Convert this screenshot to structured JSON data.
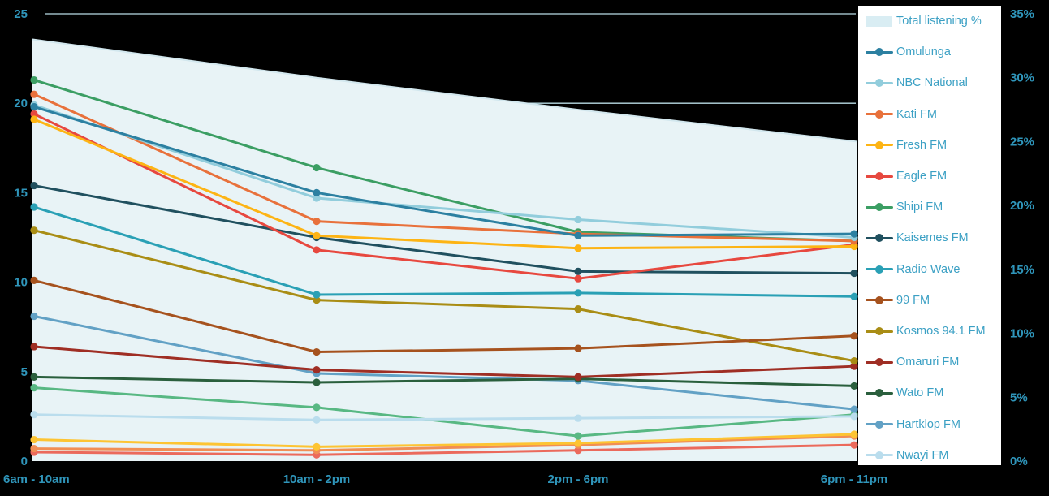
{
  "chart_data": {
    "type": "line",
    "title": "",
    "x_categories": [
      "6am - 10am",
      "10am - 2pm",
      "2pm - 6pm",
      "6pm - 11pm"
    ],
    "left_axis": {
      "min": 0,
      "max": 25,
      "tick_labels": [
        "25",
        "20",
        "15",
        "10",
        "5",
        "0"
      ]
    },
    "right_axis": {
      "min": 0,
      "max": 35,
      "tick_labels": [
        "35%",
        "30%",
        "25%",
        "20%",
        "15%",
        "10%",
        "5%",
        "0%"
      ]
    },
    "grid": "horizontal gridlines at left-axis 25 and 20 visible above area fill",
    "legend_position": "right",
    "area_series": {
      "name": "Total listening %",
      "axis": "right",
      "values_percent": [
        33,
        30,
        27.5,
        25
      ],
      "fill_color": "#e8f3f6",
      "edge_color": "#d2e7ee",
      "swatch_color": "#d9edf3"
    },
    "series": [
      {
        "name": "Omulunga",
        "color": "#2c80a1",
        "values": [
          19.8,
          15.0,
          12.6,
          12.7
        ]
      },
      {
        "name": "NBC National",
        "color": "#92cddc",
        "values": [
          19.9,
          14.7,
          13.5,
          12.5
        ]
      },
      {
        "name": "Kati FM",
        "color": "#e8713b",
        "values": [
          20.5,
          13.4,
          12.7,
          12.3
        ]
      },
      {
        "name": "Fresh FM",
        "color": "#fdb414",
        "values": [
          19.1,
          12.6,
          11.9,
          12.0
        ]
      },
      {
        "name": "Eagle FM",
        "color": "#e7483f",
        "values": [
          19.4,
          11.8,
          10.2,
          12.1
        ]
      },
      {
        "name": "Shipi FM",
        "color": "#3b9e63",
        "values": [
          21.3,
          16.4,
          12.8,
          12.3
        ]
      },
      {
        "name": "Kaisemes FM",
        "color": "#20505f",
        "values": [
          15.4,
          12.5,
          10.6,
          10.5
        ]
      },
      {
        "name": "Radio Wave",
        "color": "#2aa0b5",
        "values": [
          14.2,
          9.3,
          9.4,
          9.2
        ]
      },
      {
        "name": "99 FM",
        "color": "#a6521e",
        "values": [
          10.1,
          6.1,
          6.3,
          7.0
        ]
      },
      {
        "name": "Kosmos 94.1 FM",
        "color": "#a98d15",
        "values": [
          12.9,
          9.0,
          8.5,
          5.6
        ]
      },
      {
        "name": "Omaruri FM",
        "color": "#9f2e24",
        "values": [
          6.4,
          5.1,
          4.7,
          5.3
        ]
      },
      {
        "name": "Wato FM",
        "color": "#2a5f3d",
        "values": [
          4.7,
          4.4,
          4.6,
          4.2
        ]
      },
      {
        "name": "Hartklop FM",
        "color": "#62a1c5",
        "values": [
          8.1,
          4.9,
          4.5,
          2.9
        ]
      },
      {
        "name": "Nwayi FM",
        "color": "#badded",
        "values": [
          2.6,
          2.3,
          2.4,
          2.5
        ]
      }
    ],
    "unlabeled_series": [
      {
        "name": "",
        "color": "#58b883",
        "values": [
          4.1,
          3.0,
          1.4,
          2.6
        ]
      },
      {
        "name": "",
        "color": "#fdc433",
        "values": [
          1.2,
          0.8,
          1.0,
          1.5
        ]
      },
      {
        "name": "",
        "color": "#f18e54",
        "values": [
          0.7,
          0.6,
          0.9,
          1.4
        ]
      },
      {
        "name": "",
        "color": "#eb6a5c",
        "values": [
          0.5,
          0.35,
          0.6,
          0.9
        ]
      }
    ]
  },
  "legend": {
    "items": [
      {
        "label": "Total listening %",
        "key": "patch-key"
      },
      {
        "label": "Omulunga",
        "key": "line-dot-key"
      },
      {
        "label": "NBC National",
        "key": "line-dot-key"
      },
      {
        "label": "Kati FM",
        "key": "line-dot-key"
      },
      {
        "label": "Fresh FM",
        "key": "line-dot-key"
      },
      {
        "label": "Eagle FM",
        "key": "line-dot-key"
      },
      {
        "label": "Shipi FM",
        "key": "line-dot-key"
      },
      {
        "label": "Kaisemes FM",
        "key": "line-dot-key"
      },
      {
        "label": "Radio Wave",
        "key": "line-dot-key"
      },
      {
        "label": "99 FM",
        "key": "line-dot-key"
      },
      {
        "label": "Kosmos 94.1 FM",
        "key": "line-dot-key"
      },
      {
        "label": "Omaruri FM",
        "key": "line-dot-key"
      },
      {
        "label": "Wato FM",
        "key": "line-dot-key"
      },
      {
        "label": "Hartklop FM",
        "key": "line-dot-key"
      },
      {
        "label": "Nwayi FM",
        "key": "line-dot-key"
      }
    ]
  },
  "colors": {
    "background": "#000000",
    "gridline": "#b9dce5",
    "axis_text": "#2f95ba",
    "legend_text": "#3ba0c4",
    "legend_background": "#ffffff"
  }
}
